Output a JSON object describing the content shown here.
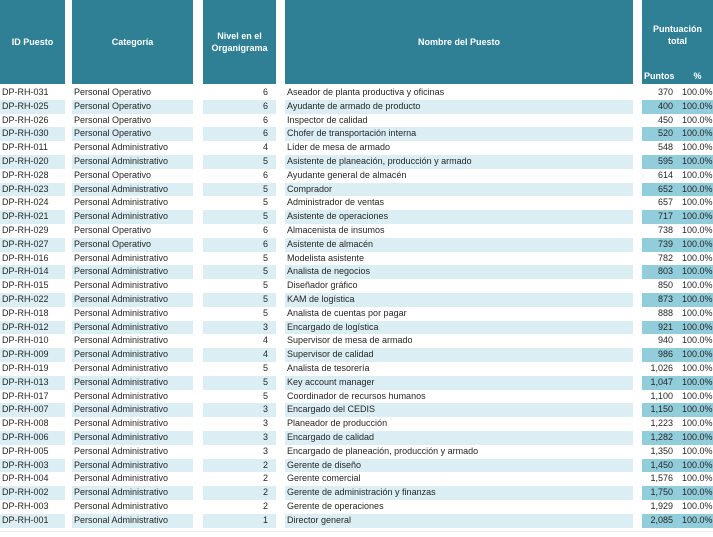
{
  "table": {
    "headers": {
      "id": "ID Puesto",
      "categoria": "Categoría",
      "nivel": "Nivel en el Organigrama",
      "nombre": "Nombre del Puesto",
      "puntuacion": "Puntuación total",
      "puntos": "Puntos",
      "pct": "%"
    },
    "rows": [
      {
        "id": "DP-RH-031",
        "categoria": "Personal Operativo",
        "nivel": "6",
        "nombre": "Aseador de planta productiva y oficinas",
        "puntos": "370",
        "pct": "100.0%"
      },
      {
        "id": "DP-RH-025",
        "categoria": "Personal Operativo",
        "nivel": "6",
        "nombre": "Ayudante de armado de producto",
        "puntos": "400",
        "pct": "100.0%"
      },
      {
        "id": "DP-RH-026",
        "categoria": "Personal Operativo",
        "nivel": "6",
        "nombre": "Inspector de calidad",
        "puntos": "450",
        "pct": "100.0%"
      },
      {
        "id": "DP-RH-030",
        "categoria": "Personal Operativo",
        "nivel": "6",
        "nombre": "Chofer de transportación interna",
        "puntos": "520",
        "pct": "100.0%"
      },
      {
        "id": "DP-RH-011",
        "categoria": "Personal Administrativo",
        "nivel": "4",
        "nombre": "Líder de mesa de armado",
        "puntos": "548",
        "pct": "100.0%"
      },
      {
        "id": "DP-RH-020",
        "categoria": "Personal Administrativo",
        "nivel": "5",
        "nombre": "Asistente de planeación, producción y armado",
        "puntos": "595",
        "pct": "100.0%"
      },
      {
        "id": "DP-RH-028",
        "categoria": "Personal Operativo",
        "nivel": "6",
        "nombre": "Ayudante general de almacén",
        "puntos": "614",
        "pct": "100.0%"
      },
      {
        "id": "DP-RH-023",
        "categoria": "Personal Administrativo",
        "nivel": "5",
        "nombre": "Comprador",
        "puntos": "652",
        "pct": "100.0%"
      },
      {
        "id": "DP-RH-024",
        "categoria": "Personal Administrativo",
        "nivel": "5",
        "nombre": "Administrador de ventas",
        "puntos": "657",
        "pct": "100.0%"
      },
      {
        "id": "DP-RH-021",
        "categoria": "Personal Administrativo",
        "nivel": "5",
        "nombre": "Asistente de operaciones",
        "puntos": "717",
        "pct": "100.0%"
      },
      {
        "id": "DP-RH-029",
        "categoria": "Personal Operativo",
        "nivel": "6",
        "nombre": "Almacenista de insumos",
        "puntos": "738",
        "pct": "100.0%"
      },
      {
        "id": "DP-RH-027",
        "categoria": "Personal Operativo",
        "nivel": "6",
        "nombre": "Asistente de almacén",
        "puntos": "739",
        "pct": "100.0%"
      },
      {
        "id": "DP-RH-016",
        "categoria": "Personal Administrativo",
        "nivel": "5",
        "nombre": "Modelista asistente",
        "puntos": "782",
        "pct": "100.0%"
      },
      {
        "id": "DP-RH-014",
        "categoria": "Personal Administrativo",
        "nivel": "5",
        "nombre": "Analista de negocios",
        "puntos": "803",
        "pct": "100.0%"
      },
      {
        "id": "DP-RH-015",
        "categoria": "Personal Administrativo",
        "nivel": "5",
        "nombre": "Diseñador gráfico",
        "puntos": "850",
        "pct": "100.0%"
      },
      {
        "id": "DP-RH-022",
        "categoria": "Personal Administrativo",
        "nivel": "5",
        "nombre": "KAM de logística",
        "puntos": "873",
        "pct": "100.0%"
      },
      {
        "id": "DP-RH-018",
        "categoria": "Personal Administrativo",
        "nivel": "5",
        "nombre": "Analista de cuentas por pagar",
        "puntos": "888",
        "pct": "100.0%"
      },
      {
        "id": "DP-RH-012",
        "categoria": "Personal Administrativo",
        "nivel": "3",
        "nombre": "Encargado de logística",
        "puntos": "921",
        "pct": "100.0%"
      },
      {
        "id": "DP-RH-010",
        "categoria": "Personal Administrativo",
        "nivel": "4",
        "nombre": "Supervisor de mesa de armado",
        "puntos": "940",
        "pct": "100.0%"
      },
      {
        "id": "DP-RH-009",
        "categoria": "Personal Administrativo",
        "nivel": "4",
        "nombre": "Supervisor  de calidad",
        "puntos": "986",
        "pct": "100.0%"
      },
      {
        "id": "DP-RH-019",
        "categoria": "Personal Administrativo",
        "nivel": "5",
        "nombre": "Analista de tesorería",
        "puntos": "1,026",
        "pct": "100.0%"
      },
      {
        "id": "DP-RH-013",
        "categoria": "Personal Administrativo",
        "nivel": "5",
        "nombre": "Key account manager",
        "puntos": "1,047",
        "pct": "100.0%"
      },
      {
        "id": "DP-RH-017",
        "categoria": "Personal Administrativo",
        "nivel": "5",
        "nombre": "Coordinador de recursos humanos",
        "puntos": "1,100",
        "pct": "100.0%"
      },
      {
        "id": "DP-RH-007",
        "categoria": "Personal Administrativo",
        "nivel": "3",
        "nombre": "Encargado del CEDIS",
        "puntos": "1,150",
        "pct": "100.0%"
      },
      {
        "id": "DP-RH-008",
        "categoria": "Personal Administrativo",
        "nivel": "3",
        "nombre": "Planeador de producción",
        "puntos": "1,223",
        "pct": "100.0%"
      },
      {
        "id": "DP-RH-006",
        "categoria": "Personal Administrativo",
        "nivel": "3",
        "nombre": "Encargado de calidad",
        "puntos": "1,282",
        "pct": "100.0%"
      },
      {
        "id": "DP-RH-005",
        "categoria": "Personal Administrativo",
        "nivel": "3",
        "nombre": "Encargado de planeación, producción y armado",
        "puntos": "1,350",
        "pct": "100.0%"
      },
      {
        "id": "DP-RH-003",
        "categoria": "Personal Administrativo",
        "nivel": "2",
        "nombre": "Gerente de diseño",
        "puntos": "1,450",
        "pct": "100.0%"
      },
      {
        "id": "DP-RH-004",
        "categoria": "Personal Administrativo",
        "nivel": "2",
        "nombre": "Gerente comercial",
        "puntos": "1,576",
        "pct": "100.0%"
      },
      {
        "id": "DP-RH-002",
        "categoria": "Personal Administrativo",
        "nivel": "2",
        "nombre": "Gerente de administración y finanzas",
        "puntos": "1,750",
        "pct": "100.0%"
      },
      {
        "id": "DP-RH-003",
        "categoria": "Personal Administrativo",
        "nivel": "2",
        "nombre": "Gerente de operaciones",
        "puntos": "1,929",
        "pct": "100.0%"
      },
      {
        "id": "DP-RH-001",
        "categoria": "Personal Administrativo",
        "nivel": "1",
        "nombre": "Director general",
        "puntos": "2,085",
        "pct": "100.0%"
      }
    ]
  },
  "colors": {
    "header_teal": "#2F7F95",
    "stripe_light": "#DAEEF3",
    "stripe_points": "#92CDDC",
    "header_text": "#FFFFFF",
    "body_text": "#262626"
  }
}
